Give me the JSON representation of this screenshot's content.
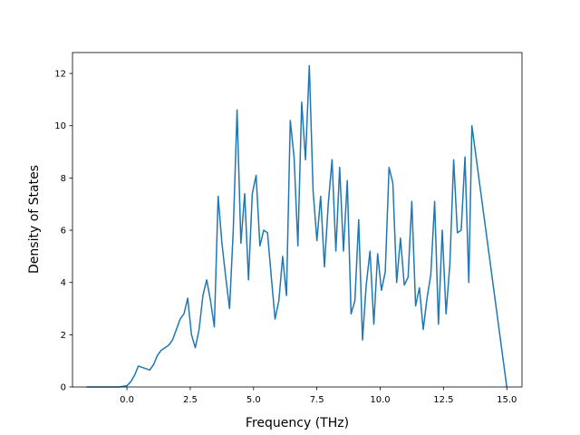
{
  "chart_data": {
    "type": "line",
    "title": "",
    "xlabel": "Frequency (THz)",
    "ylabel": "Density of States",
    "xlim": [
      -2.15,
      15.6
    ],
    "ylim": [
      0,
      12.8
    ],
    "grid": false,
    "line_color": "#1f77b4",
    "x_ticks": [
      {
        "value": 0.0,
        "label": "0.0"
      },
      {
        "value": 2.5,
        "label": "2.5"
      },
      {
        "value": 5.0,
        "label": "5.0"
      },
      {
        "value": 7.5,
        "label": "7.5"
      },
      {
        "value": 10.0,
        "label": "10.0"
      },
      {
        "value": 12.5,
        "label": "12.5"
      },
      {
        "value": 15.0,
        "label": "15.0"
      }
    ],
    "y_ticks": [
      {
        "value": 0,
        "label": "0"
      },
      {
        "value": 2,
        "label": "2"
      },
      {
        "value": 4,
        "label": "4"
      },
      {
        "value": 6,
        "label": "6"
      },
      {
        "value": 8,
        "label": "8"
      },
      {
        "value": 10,
        "label": "10"
      },
      {
        "value": 12,
        "label": "12"
      }
    ],
    "series": [
      {
        "x": [
          -1.6,
          -0.3,
          0.0,
          0.15,
          0.3,
          0.45,
          0.6,
          0.75,
          0.9,
          1.05,
          1.2,
          1.35,
          1.5,
          1.65,
          1.8,
          1.95,
          2.1,
          2.25,
          2.4,
          2.55,
          2.7,
          2.85,
          3.0,
          3.15,
          3.3,
          3.45,
          3.6,
          3.75,
          3.9,
          4.05,
          4.2,
          4.35,
          4.5,
          4.65,
          4.8,
          4.95,
          5.1,
          5.25,
          5.4,
          5.55,
          5.7,
          5.85,
          6.0,
          6.15,
          6.3,
          6.45,
          6.6,
          6.75,
          6.9,
          7.05,
          7.2,
          7.35,
          7.5,
          7.65,
          7.8,
          7.95,
          8.1,
          8.25,
          8.4,
          8.55,
          8.7,
          8.85,
          9.0,
          9.15,
          9.3,
          9.45,
          9.6,
          9.75,
          9.9,
          10.05,
          10.2,
          10.35,
          10.5,
          10.65,
          10.8,
          10.95,
          11.1,
          11.25,
          11.4,
          11.55,
          11.7,
          11.85,
          12.0,
          12.15,
          12.3,
          12.45,
          12.6,
          12.75,
          12.9,
          13.05,
          13.2,
          13.35,
          13.5,
          13.62,
          15.0
        ],
        "y": [
          0.0,
          0.0,
          0.05,
          0.2,
          0.45,
          0.8,
          0.75,
          0.7,
          0.65,
          0.85,
          1.2,
          1.4,
          1.5,
          1.6,
          1.8,
          2.2,
          2.6,
          2.8,
          3.4,
          2.0,
          1.5,
          2.2,
          3.5,
          4.1,
          3.3,
          2.3,
          7.3,
          5.5,
          4.2,
          3.0,
          6.0,
          10.6,
          5.5,
          7.4,
          4.1,
          7.4,
          8.1,
          5.4,
          6.0,
          5.9,
          4.2,
          2.6,
          3.3,
          5.0,
          3.5,
          10.2,
          8.8,
          5.4,
          10.9,
          8.7,
          12.3,
          7.5,
          5.6,
          7.3,
          4.6,
          7.0,
          8.7,
          5.2,
          8.4,
          5.2,
          7.9,
          2.8,
          3.3,
          6.4,
          1.8,
          3.9,
          5.2,
          2.4,
          5.1,
          3.7,
          4.4,
          8.4,
          7.8,
          4.0,
          5.7,
          3.9,
          4.2,
          7.1,
          3.1,
          3.8,
          2.2,
          3.4,
          4.3,
          7.1,
          2.4,
          6.0,
          2.8,
          4.7,
          8.7,
          5.9,
          6.0,
          8.8,
          4.0,
          10.0,
          0.0
        ]
      }
    ]
  }
}
